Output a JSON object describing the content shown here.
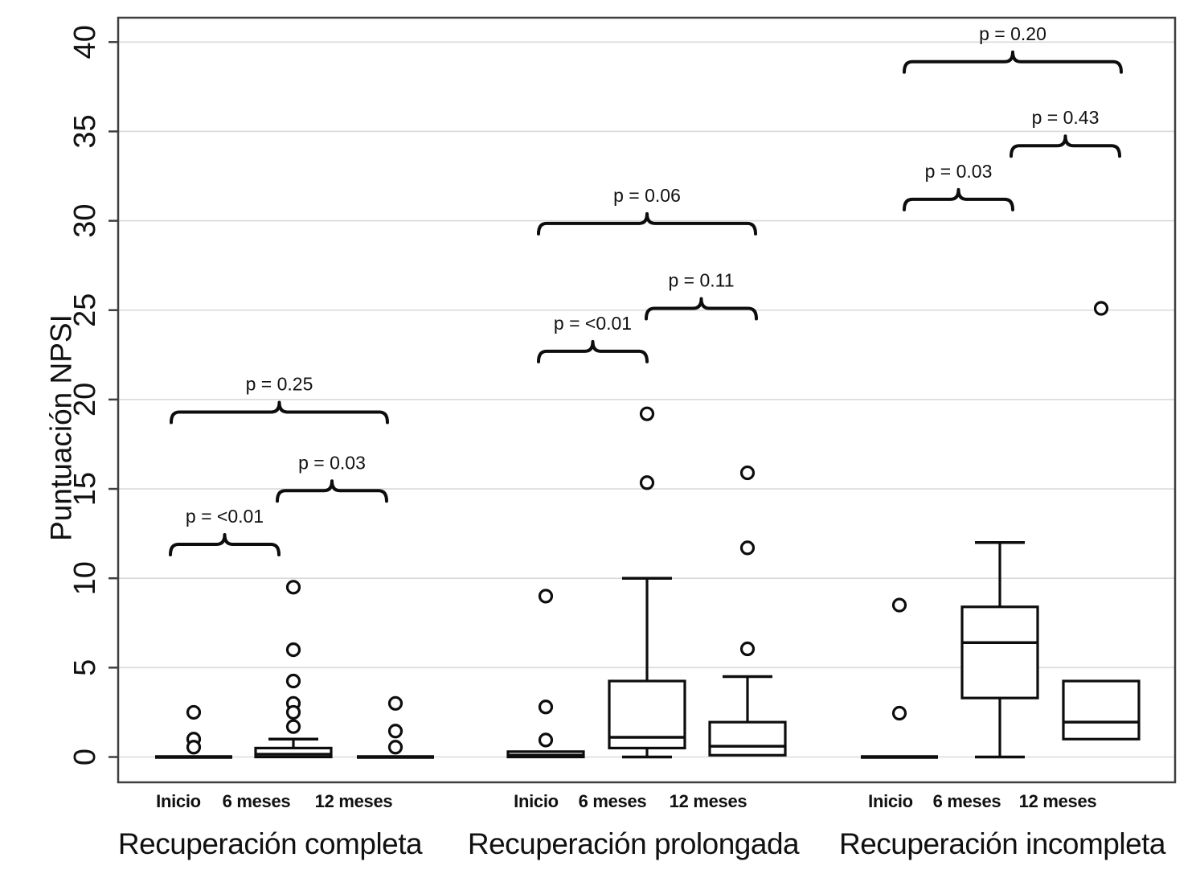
{
  "figure": {
    "title": "",
    "ylabel": "Puntuación NPSI",
    "colors": {
      "background": "#ffffff",
      "data_line": "#0d0d0d",
      "gridline": "#d9d9d9",
      "plot_border": "#3f3f3f",
      "text": "#111111"
    }
  },
  "chart_data": {
    "type": "boxplot",
    "title": "",
    "ylabel": "Puntuación NPSI",
    "xlabel": "",
    "ylim": [
      0,
      40
    ],
    "yticks": [
      0,
      5,
      10,
      15,
      20,
      25,
      30,
      35,
      40
    ],
    "grid": "horizontal",
    "legend": "none",
    "groups": [
      {
        "label": "Recuperación completa",
        "categories": [
          "Inicio",
          "6 meses",
          "12 meses"
        ],
        "boxes": [
          {
            "category": "Inicio",
            "type": "flat",
            "value": 0,
            "outliers": [
              2.5,
              1.0,
              0.55
            ]
          },
          {
            "category": "6 meses",
            "type": "box",
            "q1": 0,
            "median": 0.15,
            "q3": 0.5,
            "whisker_high": 1.0,
            "whisker_low": null,
            "outliers": [
              9.5,
              6.0,
              4.25,
              3.0,
              2.5,
              1.7
            ]
          },
          {
            "category": "12 meses",
            "type": "flat",
            "value": 0,
            "outliers": [
              3.0,
              1.45,
              0.55
            ]
          }
        ],
        "comparisons": [
          {
            "label": "p = <0.01",
            "between": [
              0,
              1
            ],
            "height": 11.9
          },
          {
            "label": "p = 0.03",
            "between": [
              1,
              2
            ],
            "height": 14.9
          },
          {
            "label": "p = 0.25",
            "between": [
              0,
              2
            ],
            "height": 19.3
          }
        ]
      },
      {
        "label": "Recuperación prolongada",
        "categories": [
          "Inicio",
          "6 meses",
          "12 meses"
        ],
        "boxes": [
          {
            "category": "Inicio",
            "type": "box",
            "q1": 0,
            "median": 0.1,
            "q3": 0.3,
            "whisker_high": null,
            "whisker_low": null,
            "outliers": [
              9.0,
              2.8,
              0.95
            ]
          },
          {
            "category": "6 meses",
            "type": "box",
            "q1": 0.5,
            "median": 1.1,
            "q3": 4.25,
            "whisker_high": 10.0,
            "whisker_low": 0,
            "outliers": [
              19.2,
              15.35
            ]
          },
          {
            "category": "12 meses",
            "type": "box",
            "q1": 0.1,
            "median": 0.6,
            "q3": 1.95,
            "whisker_high": 4.5,
            "whisker_low": null,
            "outliers": [
              15.9,
              11.7,
              6.05
            ]
          }
        ],
        "comparisons": [
          {
            "label": "p = <0.01",
            "between": [
              0,
              1
            ],
            "height": 22.7
          },
          {
            "label": "p = 0.11",
            "between": [
              1,
              2
            ],
            "height": 25.1
          },
          {
            "label": "p = 0.06",
            "between": [
              0,
              2
            ],
            "height": 29.85
          }
        ]
      },
      {
        "label": "Recuperación incompleta",
        "categories": [
          "Inicio",
          "6 meses",
          "12 meses"
        ],
        "boxes": [
          {
            "category": "Inicio",
            "type": "flat",
            "value": 0,
            "outliers": [
              8.5,
              2.45
            ]
          },
          {
            "category": "6 meses",
            "type": "box",
            "q1": 3.3,
            "median": 6.4,
            "q3": 8.4,
            "whisker_high": 12.0,
            "whisker_low": 0,
            "outliers": []
          },
          {
            "category": "12 meses",
            "type": "box",
            "q1": 1.0,
            "median": 1.95,
            "q3": 4.25,
            "whisker_high": null,
            "whisker_low": null,
            "outliers": [
              25.1
            ]
          }
        ],
        "comparisons": [
          {
            "label": "p = 0.03",
            "between": [
              0,
              1
            ],
            "height": 31.2
          },
          {
            "label": "p = 0.43",
            "between": [
              1,
              2
            ],
            "height": 34.2
          },
          {
            "label": "p = 0.20",
            "between": [
              0,
              2
            ],
            "height": 38.9
          }
        ]
      }
    ]
  }
}
